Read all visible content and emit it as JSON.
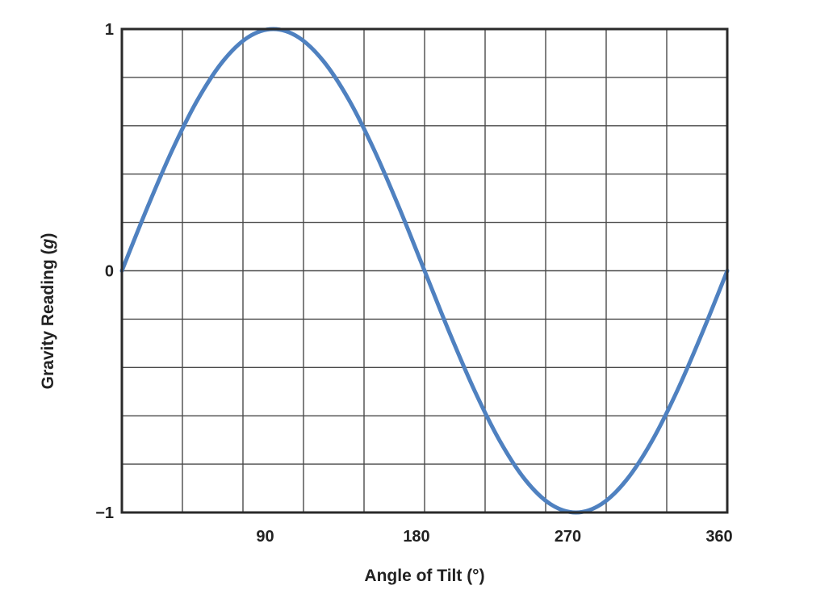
{
  "chart_data": {
    "type": "line",
    "title": "",
    "xlabel": "Angle of Tilt (°)",
    "ylabel": "Gravity Reading (g)",
    "ylabel_parts": {
      "prefix": "Gravity Reading (",
      "unit": "g",
      "suffix": ")"
    },
    "xlim": [
      0,
      360
    ],
    "ylim": [
      -1,
      1
    ],
    "x_gridlines": [
      0,
      36,
      72,
      108,
      144,
      180,
      216,
      252,
      288,
      324,
      360
    ],
    "y_gridlines": [
      -1,
      -0.8,
      -0.6,
      -0.4,
      -0.2,
      0,
      0.2,
      0.4,
      0.6,
      0.8,
      1
    ],
    "x_tick_labels": [
      {
        "value": 90,
        "label": "90"
      },
      {
        "value": 180,
        "label": "180"
      },
      {
        "value": 270,
        "label": "270"
      },
      {
        "value": 360,
        "label": "360"
      }
    ],
    "y_tick_labels": [
      {
        "value": 1,
        "label": "1"
      },
      {
        "value": 0,
        "label": "0"
      },
      {
        "value": -1,
        "label": "−1"
      }
    ],
    "grid": true,
    "legend": "none",
    "series": [
      {
        "color": "#4f81c0",
        "x": [
          0,
          15,
          30,
          45,
          60,
          75,
          90,
          105,
          120,
          135,
          150,
          165,
          180,
          195,
          210,
          225,
          240,
          255,
          270,
          285,
          300,
          315,
          330,
          345,
          360
        ],
        "y": [
          0,
          0.259,
          0.5,
          0.707,
          0.866,
          0.966,
          1,
          0.966,
          0.866,
          0.707,
          0.5,
          0.259,
          0,
          -0.259,
          -0.5,
          -0.707,
          -0.866,
          -0.966,
          -1,
          -0.966,
          -0.866,
          -0.707,
          -0.5,
          -0.259,
          0
        ]
      }
    ]
  },
  "colors": {
    "series": "#4f81c0",
    "grid": "#4a4a4a",
    "frame": "#2a2a2a",
    "text": "#222222"
  }
}
